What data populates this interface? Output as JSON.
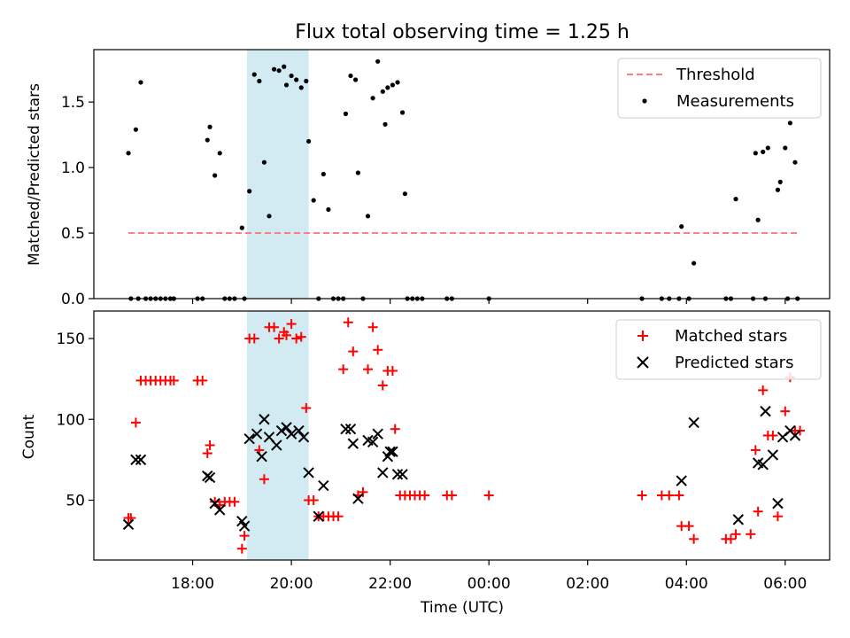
{
  "figure": {
    "title": "Flux total observing time = 1.25 h",
    "xlabel": "Time (UTC)",
    "x_tick_labels": [
      "18:00",
      "20:00",
      "22:00",
      "00:00",
      "02:00",
      "04:00",
      "06:00"
    ]
  },
  "chart_data": [
    {
      "type": "scatter",
      "panel": "top",
      "ylabel": "Matched/Predicted stars",
      "ylim": [
        0,
        1.9
      ],
      "yticks": [
        0.0,
        0.5,
        1.0,
        1.5
      ],
      "ytick_labels": [
        "0.0",
        "0.5",
        "1.0",
        "1.5"
      ],
      "x_axis": {
        "unit": "hours UTC, continuing past midnight",
        "xlim": [
          16.0,
          30.9
        ],
        "ticks": [
          18,
          20,
          22,
          24,
          26,
          28,
          30
        ]
      },
      "highlight_span": {
        "x_from": 19.1,
        "x_to": 20.35,
        "color": "#add8e6"
      },
      "legend": {
        "position": "upper right",
        "entries": [
          "Threshold",
          "Measurements"
        ]
      },
      "series": [
        {
          "name": "Threshold",
          "style": "dashed-line",
          "color": "#ff7f7f",
          "x": [
            16.7,
            30.3
          ],
          "y": [
            0.5,
            0.5
          ]
        },
        {
          "name": "Measurements",
          "style": "dots",
          "color": "#000000",
          "points": [
            [
              16.7,
              1.11
            ],
            [
              16.75,
              0.0
            ],
            [
              16.85,
              1.29
            ],
            [
              16.9,
              0.0
            ],
            [
              16.95,
              1.65
            ],
            [
              17.05,
              0.0
            ],
            [
              17.15,
              0.0
            ],
            [
              17.25,
              0.0
            ],
            [
              17.35,
              0.0
            ],
            [
              17.45,
              0.0
            ],
            [
              17.55,
              0.0
            ],
            [
              17.62,
              0.0
            ],
            [
              18.1,
              0.0
            ],
            [
              18.2,
              0.0
            ],
            [
              18.3,
              1.21
            ],
            [
              18.35,
              1.31
            ],
            [
              18.45,
              0.94
            ],
            [
              18.55,
              1.11
            ],
            [
              18.65,
              0.0
            ],
            [
              18.75,
              0.0
            ],
            [
              18.85,
              0.0
            ],
            [
              19.0,
              0.54
            ],
            [
              19.05,
              0.0
            ],
            [
              19.15,
              0.82
            ],
            [
              19.25,
              1.71
            ],
            [
              19.35,
              1.66
            ],
            [
              19.45,
              1.04
            ],
            [
              19.55,
              0.63
            ],
            [
              19.65,
              1.75
            ],
            [
              19.75,
              1.74
            ],
            [
              19.85,
              1.77
            ],
            [
              19.9,
              1.63
            ],
            [
              20.0,
              1.7
            ],
            [
              20.1,
              1.67
            ],
            [
              20.2,
              1.61
            ],
            [
              20.3,
              1.66
            ],
            [
              20.35,
              1.2
            ],
            [
              20.45,
              0.75
            ],
            [
              20.55,
              0.0
            ],
            [
              20.65,
              0.95
            ],
            [
              20.75,
              0.68
            ],
            [
              20.85,
              0.0
            ],
            [
              20.95,
              0.0
            ],
            [
              21.05,
              0.0
            ],
            [
              21.1,
              1.41
            ],
            [
              21.2,
              1.7
            ],
            [
              21.3,
              1.67
            ],
            [
              21.35,
              0.96
            ],
            [
              21.45,
              0.0
            ],
            [
              21.55,
              0.63
            ],
            [
              21.65,
              1.53
            ],
            [
              21.75,
              1.81
            ],
            [
              21.85,
              1.58
            ],
            [
              21.9,
              1.33
            ],
            [
              21.95,
              1.61
            ],
            [
              22.05,
              1.63
            ],
            [
              22.15,
              1.65
            ],
            [
              22.25,
              1.42
            ],
            [
              22.3,
              0.8
            ],
            [
              22.35,
              0.0
            ],
            [
              22.45,
              0.0
            ],
            [
              22.55,
              0.0
            ],
            [
              22.65,
              0.0
            ],
            [
              23.15,
              0.0
            ],
            [
              23.25,
              0.0
            ],
            [
              24.0,
              0.0
            ],
            [
              27.1,
              0.0
            ],
            [
              27.5,
              0.0
            ],
            [
              27.65,
              0.0
            ],
            [
              27.85,
              0.0
            ],
            [
              27.9,
              0.55
            ],
            [
              28.05,
              0.0
            ],
            [
              28.15,
              0.27
            ],
            [
              28.8,
              0.0
            ],
            [
              28.9,
              0.0
            ],
            [
              29.0,
              0.76
            ],
            [
              29.35,
              0.0
            ],
            [
              29.4,
              1.11
            ],
            [
              29.45,
              0.6
            ],
            [
              29.55,
              1.12
            ],
            [
              29.6,
              0.0
            ],
            [
              29.65,
              1.15
            ],
            [
              29.85,
              0.83
            ],
            [
              29.9,
              0.89
            ],
            [
              30.0,
              1.15
            ],
            [
              30.05,
              0.0
            ],
            [
              30.1,
              1.34
            ],
            [
              30.2,
              1.04
            ],
            [
              30.25,
              0.0
            ]
          ]
        }
      ]
    },
    {
      "type": "scatter",
      "panel": "bottom",
      "ylabel": "Count",
      "ylim": [
        13,
        167
      ],
      "yticks": [
        50,
        100,
        150
      ],
      "ytick_labels": [
        "50",
        "100",
        "150"
      ],
      "x_axis": {
        "unit": "hours UTC, continuing past midnight",
        "xlim": [
          16.0,
          30.9
        ],
        "ticks": [
          18,
          20,
          22,
          24,
          26,
          28,
          30
        ]
      },
      "highlight_span": {
        "x_from": 19.1,
        "x_to": 20.35,
        "color": "#add8e6"
      },
      "legend": {
        "position": "upper right",
        "entries": [
          "Matched stars",
          "Predicted stars"
        ]
      },
      "series": [
        {
          "name": "Matched stars",
          "marker": "plus",
          "color": "#ff0000",
          "points": [
            [
              16.7,
              39
            ],
            [
              16.75,
              39
            ],
            [
              16.85,
              98
            ],
            [
              16.95,
              124
            ],
            [
              17.05,
              124
            ],
            [
              17.15,
              124
            ],
            [
              17.25,
              124
            ],
            [
              17.35,
              124
            ],
            [
              17.45,
              124
            ],
            [
              17.55,
              124
            ],
            [
              17.62,
              124
            ],
            [
              18.1,
              124
            ],
            [
              18.2,
              124
            ],
            [
              18.3,
              79
            ],
            [
              18.35,
              84
            ],
            [
              18.45,
              49
            ],
            [
              18.55,
              47
            ],
            [
              18.65,
              49
            ],
            [
              18.75,
              49
            ],
            [
              18.85,
              49
            ],
            [
              19.0,
              20
            ],
            [
              19.05,
              28
            ],
            [
              19.15,
              150
            ],
            [
              19.25,
              150
            ],
            [
              19.35,
              81
            ],
            [
              19.45,
              63
            ],
            [
              19.55,
              157
            ],
            [
              19.65,
              157
            ],
            [
              19.75,
              150
            ],
            [
              19.85,
              154
            ],
            [
              19.9,
              152
            ],
            [
              20.0,
              159
            ],
            [
              20.1,
              150
            ],
            [
              20.2,
              151
            ],
            [
              20.3,
              107
            ],
            [
              20.35,
              50
            ],
            [
              20.45,
              50
            ],
            [
              20.55,
              40
            ],
            [
              20.65,
              40
            ],
            [
              20.75,
              40
            ],
            [
              20.85,
              40
            ],
            [
              20.95,
              40
            ],
            [
              21.05,
              131
            ],
            [
              21.15,
              160
            ],
            [
              21.25,
              142
            ],
            [
              21.35,
              53
            ],
            [
              21.45,
              55
            ],
            [
              21.55,
              131
            ],
            [
              21.65,
              157
            ],
            [
              21.75,
              143
            ],
            [
              21.85,
              121
            ],
            [
              21.95,
              130
            ],
            [
              22.05,
              130
            ],
            [
              22.1,
              94
            ],
            [
              22.2,
              53
            ],
            [
              22.3,
              53
            ],
            [
              22.4,
              53
            ],
            [
              22.5,
              53
            ],
            [
              22.6,
              53
            ],
            [
              22.7,
              53
            ],
            [
              23.15,
              53
            ],
            [
              23.25,
              53
            ],
            [
              24.0,
              53
            ],
            [
              27.1,
              53
            ],
            [
              27.5,
              53
            ],
            [
              27.65,
              53
            ],
            [
              27.85,
              53
            ],
            [
              27.9,
              34
            ],
            [
              28.05,
              34
            ],
            [
              28.15,
              26
            ],
            [
              28.8,
              26
            ],
            [
              28.9,
              26
            ],
            [
              29.0,
              29
            ],
            [
              29.3,
              29
            ],
            [
              29.4,
              81
            ],
            [
              29.45,
              43
            ],
            [
              29.55,
              118
            ],
            [
              29.65,
              90
            ],
            [
              29.75,
              90
            ],
            [
              29.85,
              40
            ],
            [
              30.0,
              105
            ],
            [
              30.1,
              126
            ],
            [
              30.2,
              93
            ],
            [
              30.3,
              93
            ]
          ]
        },
        {
          "name": "Predicted stars",
          "marker": "x",
          "color": "#000000",
          "points": [
            [
              16.7,
              35
            ],
            [
              16.85,
              75
            ],
            [
              16.95,
              75
            ],
            [
              18.3,
              65
            ],
            [
              18.35,
              64
            ],
            [
              18.45,
              48
            ],
            [
              18.55,
              44
            ],
            [
              19.0,
              37
            ],
            [
              19.05,
              34
            ],
            [
              19.15,
              88
            ],
            [
              19.3,
              91
            ],
            [
              19.4,
              77
            ],
            [
              19.45,
              100
            ],
            [
              19.55,
              89
            ],
            [
              19.7,
              84
            ],
            [
              19.8,
              93
            ],
            [
              19.9,
              95
            ],
            [
              20.0,
              91
            ],
            [
              20.15,
              93
            ],
            [
              20.25,
              89
            ],
            [
              20.35,
              67
            ],
            [
              20.55,
              40
            ],
            [
              20.65,
              59
            ],
            [
              21.1,
              94
            ],
            [
              21.2,
              94
            ],
            [
              21.25,
              85
            ],
            [
              21.35,
              51
            ],
            [
              21.55,
              87
            ],
            [
              21.65,
              86
            ],
            [
              21.75,
              91
            ],
            [
              21.85,
              67
            ],
            [
              21.95,
              77
            ],
            [
              22.0,
              80
            ],
            [
              22.05,
              80
            ],
            [
              22.15,
              66
            ],
            [
              22.25,
              66
            ],
            [
              27.9,
              62
            ],
            [
              28.15,
              98
            ],
            [
              29.05,
              38
            ],
            [
              29.45,
              73
            ],
            [
              29.55,
              72
            ],
            [
              29.6,
              105
            ],
            [
              29.75,
              78
            ],
            [
              29.85,
              48
            ],
            [
              29.95,
              89
            ],
            [
              30.1,
              93
            ],
            [
              30.2,
              90
            ]
          ]
        }
      ]
    }
  ]
}
